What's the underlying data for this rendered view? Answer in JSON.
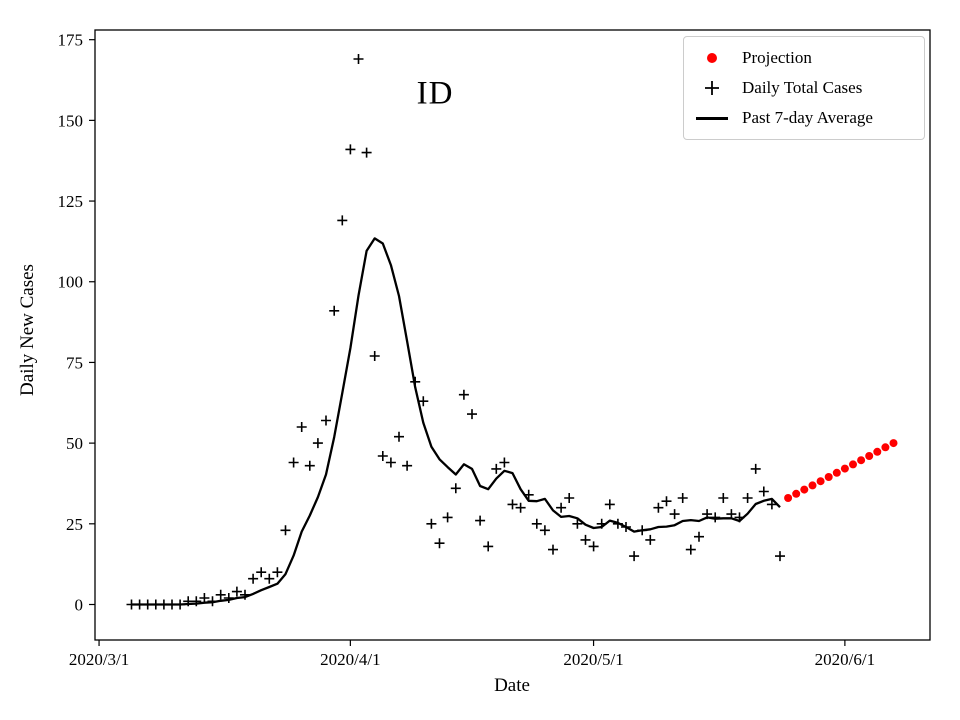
{
  "figure": {
    "title": "ID",
    "xlabel": "Date",
    "ylabel": "Daily New Cases",
    "background": "#ffffff"
  },
  "legend": {
    "position": "upper right",
    "items": [
      {
        "label": "Projection",
        "marker": "dot",
        "color": "#ff0000"
      },
      {
        "label": "Daily Total Cases",
        "marker": "plus",
        "color": "#000000"
      },
      {
        "label": "Past 7-day Average",
        "marker": "line",
        "color": "#000000"
      }
    ]
  },
  "chart_data": {
    "type": "scatter+line",
    "title": "ID",
    "xlabel": "Date",
    "ylabel": "Daily New Cases",
    "grid": false,
    "start_date": "2020/3/1",
    "xlim_day_offsets": [
      -0.5,
      102.5
    ],
    "ylim": [
      -11,
      178
    ],
    "x_ticks": [
      {
        "day_offset": 0,
        "label": "2020/3/1"
      },
      {
        "day_offset": 31,
        "label": "2020/4/1"
      },
      {
        "day_offset": 61,
        "label": "2020/5/1"
      },
      {
        "day_offset": 92,
        "label": "2020/6/1"
      }
    ],
    "y_ticks": [
      0,
      25,
      50,
      75,
      100,
      125,
      150,
      175
    ],
    "colors": {
      "frame": "#000000",
      "daily_total_cases": "#000000",
      "past_7day_average": "#000000",
      "projection": "#ff0000"
    },
    "daily_total_cases": {
      "name": "Daily Total Cases",
      "date_range": [
        "2020/3/5",
        "2020/5/24"
      ],
      "day_offsets": [
        4,
        5,
        6,
        7,
        8,
        9,
        10,
        11,
        12,
        13,
        14,
        15,
        16,
        17,
        18,
        19,
        20,
        21,
        22,
        23,
        24,
        25,
        26,
        27,
        28,
        29,
        30,
        31,
        32,
        33,
        34,
        35,
        36,
        37,
        38,
        39,
        40,
        41,
        42,
        43,
        44,
        45,
        46,
        47,
        48,
        49,
        50,
        51,
        52,
        53,
        54,
        55,
        56,
        57,
        58,
        59,
        60,
        61,
        62,
        63,
        64,
        65,
        66,
        67,
        68,
        69,
        70,
        71,
        72,
        73,
        74,
        75,
        76,
        77,
        78,
        79,
        80,
        81,
        82,
        83,
        84
      ],
      "values": [
        0,
        0,
        0,
        0,
        0,
        0,
        0,
        1,
        1,
        2,
        1,
        3,
        2,
        4,
        3,
        8,
        10,
        8,
        10,
        23,
        44,
        55,
        43,
        50,
        57,
        91,
        119,
        141,
        169,
        140,
        77,
        46,
        44,
        52,
        43,
        69,
        63,
        25,
        19,
        27,
        36,
        65,
        59,
        26,
        18,
        42,
        44,
        31,
        30,
        34,
        25,
        23,
        17,
        30,
        33,
        25,
        20,
        18,
        25,
        31,
        25,
        24,
        15,
        23,
        20,
        30,
        32,
        28,
        33,
        17,
        21,
        28,
        27,
        33,
        28,
        27,
        33,
        42,
        35,
        31,
        15
      ]
    },
    "past_7day_average": {
      "name": "Past 7-day Average",
      "derived_from": "daily_total_cases",
      "window": 7,
      "peak_value_approx": 113
    },
    "projection": {
      "name": "Projection",
      "date_range": [
        "2020/5/25",
        "2020/6/7"
      ],
      "day_offsets": [
        85,
        86,
        87,
        88,
        89,
        90,
        91,
        92,
        93,
        94,
        95,
        96,
        97,
        98
      ],
      "values": [
        33.0,
        34.3,
        35.6,
        36.9,
        38.2,
        39.5,
        40.8,
        42.1,
        43.4,
        44.7,
        46.0,
        47.3,
        48.7,
        50.0
      ]
    }
  }
}
